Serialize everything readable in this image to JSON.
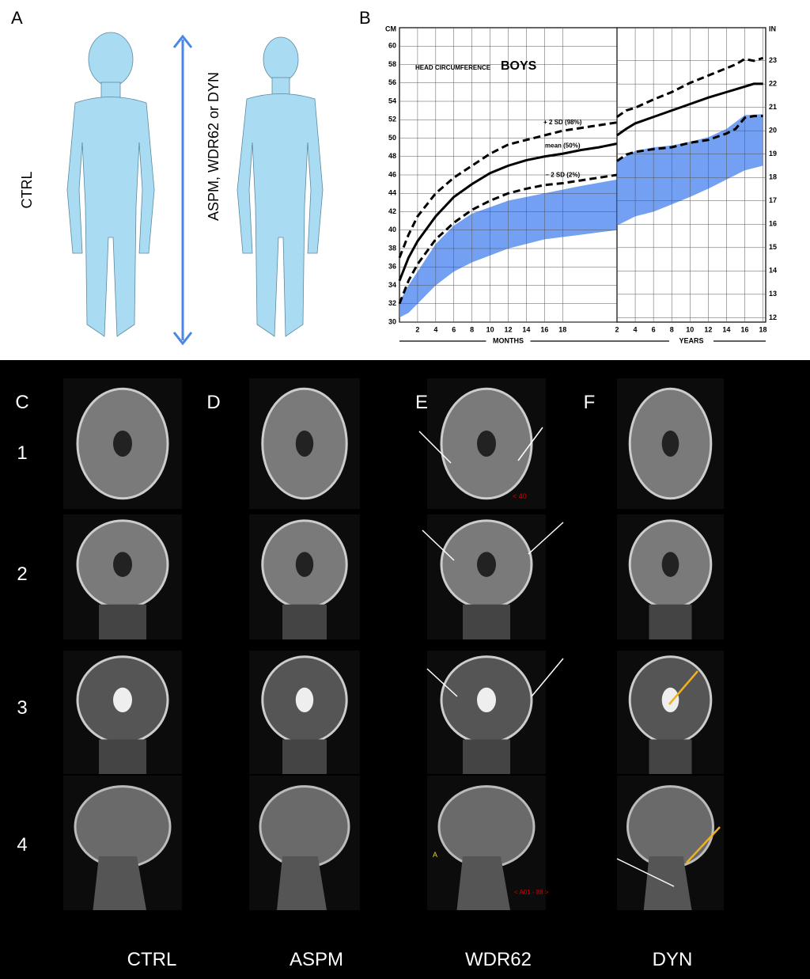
{
  "figure": {
    "panels": [
      "A",
      "B",
      "C",
      "D",
      "E",
      "F"
    ],
    "rows": [
      "1",
      "2",
      "3",
      "4"
    ],
    "columns": [
      "CTRL",
      "ASPM",
      "WDR62",
      "DYN"
    ],
    "panel_a": {
      "control_label": "CTRL",
      "patient_label": "ASPM, WDR62 or DYN"
    },
    "image_annotations": [
      "< 40",
      "A",
      "< A01 - 88 >"
    ]
  },
  "chart_data": [
    {
      "type": "line",
      "title": "HEAD CIRCUMFERENCE",
      "subtitle": "BOYS",
      "y_axis_label": "CM",
      "x_axis_label": "MONTHS",
      "xlim": [
        0,
        24
      ],
      "xticks": [
        2,
        4,
        6,
        8,
        10,
        12,
        14,
        16,
        18
      ],
      "ylim": [
        30,
        62
      ],
      "yticks": [
        30,
        32,
        34,
        36,
        38,
        40,
        42,
        44,
        46,
        48,
        50,
        52,
        54,
        56,
        58,
        60
      ],
      "grid": true,
      "band": {
        "color": "#5b8ff0",
        "x": [
          0,
          1,
          2,
          4,
          6,
          8,
          12,
          16,
          20,
          24
        ],
        "upper": [
          32.2,
          34,
          35.5,
          38.5,
          40.5,
          41.8,
          43.2,
          44,
          44.8,
          45.5
        ],
        "lower": [
          30.5,
          31,
          32,
          34,
          35.5,
          36.5,
          38,
          39,
          39.5,
          40
        ]
      },
      "series": [
        {
          "name": "+ 2 SD (98%)",
          "color": "#000000",
          "dashed": true,
          "x": [
            0,
            1,
            2,
            4,
            6,
            8,
            10,
            12,
            14,
            16,
            18,
            20,
            22,
            24
          ],
          "values": [
            37,
            39.5,
            41.5,
            44,
            45.7,
            47,
            48.3,
            49.3,
            49.8,
            50.3,
            50.8,
            51.1,
            51.4,
            51.7
          ]
        },
        {
          "name": "mean (50%)",
          "color": "#000000",
          "dashed": false,
          "x": [
            0,
            1,
            2,
            4,
            6,
            8,
            10,
            12,
            14,
            16,
            18,
            20,
            22,
            24
          ],
          "values": [
            34.5,
            37,
            38.8,
            41.5,
            43.6,
            45,
            46.2,
            47,
            47.6,
            48,
            48.3,
            48.7,
            49,
            49.4
          ]
        },
        {
          "name": "− 2 SD (2%)",
          "color": "#000000",
          "dashed": true,
          "x": [
            0,
            1,
            2,
            4,
            6,
            8,
            10,
            12,
            14,
            16,
            18,
            20,
            22,
            24
          ],
          "values": [
            32,
            34.5,
            36.3,
            39,
            40.8,
            42.2,
            43.2,
            44,
            44.5,
            44.9,
            45.1,
            45.4,
            45.7,
            46
          ]
        }
      ]
    },
    {
      "type": "line",
      "x_axis_label": "YEARS",
      "y2_axis_label": "IN",
      "xlim": [
        2,
        18.3
      ],
      "xticks": [
        2,
        4,
        6,
        8,
        10,
        12,
        14,
        16,
        18
      ],
      "ylim": [
        30,
        62
      ],
      "y2lim": [
        11.81,
        24.41
      ],
      "y2ticks": [
        12,
        13,
        14,
        15,
        16,
        17,
        18,
        19,
        20,
        21,
        22,
        23
      ],
      "grid": true,
      "band": {
        "color": "#5b8ff0",
        "x": [
          2,
          4,
          6,
          8,
          10,
          12,
          14,
          16,
          18
        ],
        "upper": [
          47.5,
          48.6,
          49,
          49.2,
          49.6,
          50.1,
          51,
          52.5,
          52.6
        ],
        "lower": [
          40.5,
          41.5,
          42,
          42.8,
          43.6,
          44.5,
          45.5,
          46.5,
          47
        ]
      },
      "series": [
        {
          "color": "#000000",
          "dashed": true,
          "x": [
            2,
            3,
            4,
            6,
            8,
            10,
            12,
            14,
            15,
            16,
            17,
            18
          ],
          "values": [
            52.3,
            53,
            53.3,
            54.2,
            55,
            56,
            56.8,
            57.6,
            58,
            58.6,
            58.4,
            58.7
          ]
        },
        {
          "color": "#000000",
          "dashed": false,
          "x": [
            2,
            3,
            4,
            6,
            8,
            10,
            12,
            14,
            15,
            16,
            17,
            18
          ],
          "values": [
            50.3,
            51,
            51.6,
            52.3,
            53,
            53.7,
            54.4,
            55,
            55.3,
            55.6,
            55.9,
            55.9
          ]
        },
        {
          "color": "#000000",
          "dashed": true,
          "x": [
            2,
            3,
            4,
            6,
            8,
            10,
            12,
            14,
            15,
            16,
            17,
            18
          ],
          "values": [
            47.5,
            48.2,
            48.5,
            48.8,
            49,
            49.5,
            49.8,
            50.5,
            51,
            52.2,
            52.4,
            52.4
          ]
        }
      ]
    }
  ]
}
